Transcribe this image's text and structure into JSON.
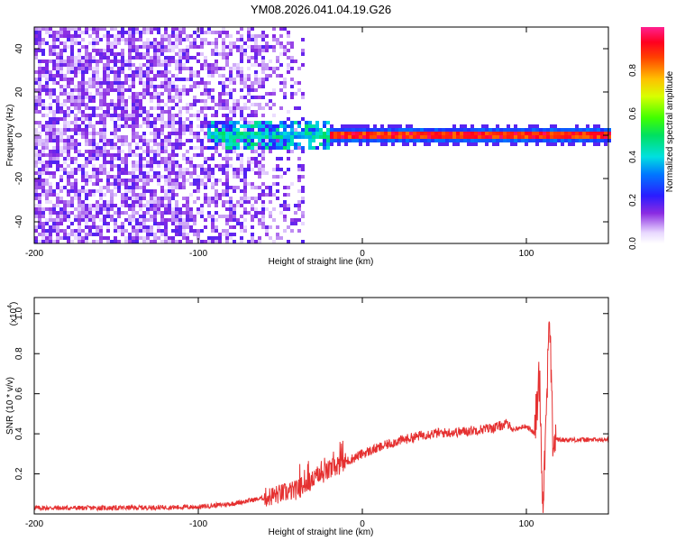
{
  "title": "YM08.2026.041.04.19.G26",
  "colors": {
    "snr_line": "#e53030",
    "axis": "#000000",
    "background": "#ffffff"
  },
  "colorbar": {
    "label": "Normalized spectral amplitude",
    "ticks": [
      "0.0",
      "0.2",
      "0.4",
      "0.6",
      "0.8"
    ],
    "range": [
      0,
      1
    ],
    "colormap": "rainbow (white-violet-blue-cyan-green-yellow-orange-red-magenta)"
  },
  "chart_data": [
    {
      "type": "heatmap",
      "title": "YM08.2026.041.04.19.G26",
      "xlabel": "Height of straight line (km)",
      "ylabel": "Frequency (Hz)",
      "xlim": [
        -200,
        150
      ],
      "ylim": [
        -50,
        50
      ],
      "x_ticks": [
        -200,
        -100,
        0,
        100
      ],
      "y_ticks": [
        -40,
        -20,
        0,
        20,
        40
      ],
      "x_tick_labels": [
        "-200",
        "-100",
        "0",
        "100"
      ],
      "y_tick_labels": [
        "-40",
        "-20",
        "0",
        "20",
        "40"
      ],
      "description_band": {
        "noise_region_x": [
          -200,
          -35
        ],
        "signal_start_x": -95,
        "signal_center_freq": 0,
        "signal_strong_from_x": -20
      }
    },
    {
      "type": "line",
      "xlabel": "Height of straight line (km)",
      "ylabel": "SNR (10 * v/v)",
      "y_scale_label": "(x10",
      "y_scale_exponent": "4",
      "xlim": [
        -200,
        150
      ],
      "ylim": [
        0,
        1.08
      ],
      "x_ticks": [
        -200,
        -100,
        0,
        100
      ],
      "y_ticks": [
        0.2,
        0.4,
        0.6,
        0.8,
        1.0
      ],
      "x_tick_labels": [
        "-200",
        "-100",
        "0",
        "100"
      ],
      "y_tick_labels": [
        "0.2",
        "0.4",
        "0.6",
        "0.8",
        "1.0"
      ],
      "series": [
        {
          "x": [
            -200,
            -150,
            -100,
            -80,
            -60,
            -50,
            -40,
            -30,
            -20,
            -10,
            0,
            10,
            20,
            30,
            40,
            60,
            80,
            88,
            92,
            100,
            105,
            108,
            110,
            112,
            114,
            116,
            120,
            130,
            150
          ],
          "y": [
            0.03,
            0.03,
            0.035,
            0.05,
            0.08,
            0.1,
            0.12,
            0.17,
            0.22,
            0.26,
            0.3,
            0.33,
            0.36,
            0.38,
            0.4,
            0.41,
            0.43,
            0.45,
            0.42,
            0.44,
            0.4,
            0.7,
            0.05,
            0.45,
            1.05,
            0.38,
            0.37,
            0.37,
            0.37
          ]
        }
      ]
    }
  ]
}
